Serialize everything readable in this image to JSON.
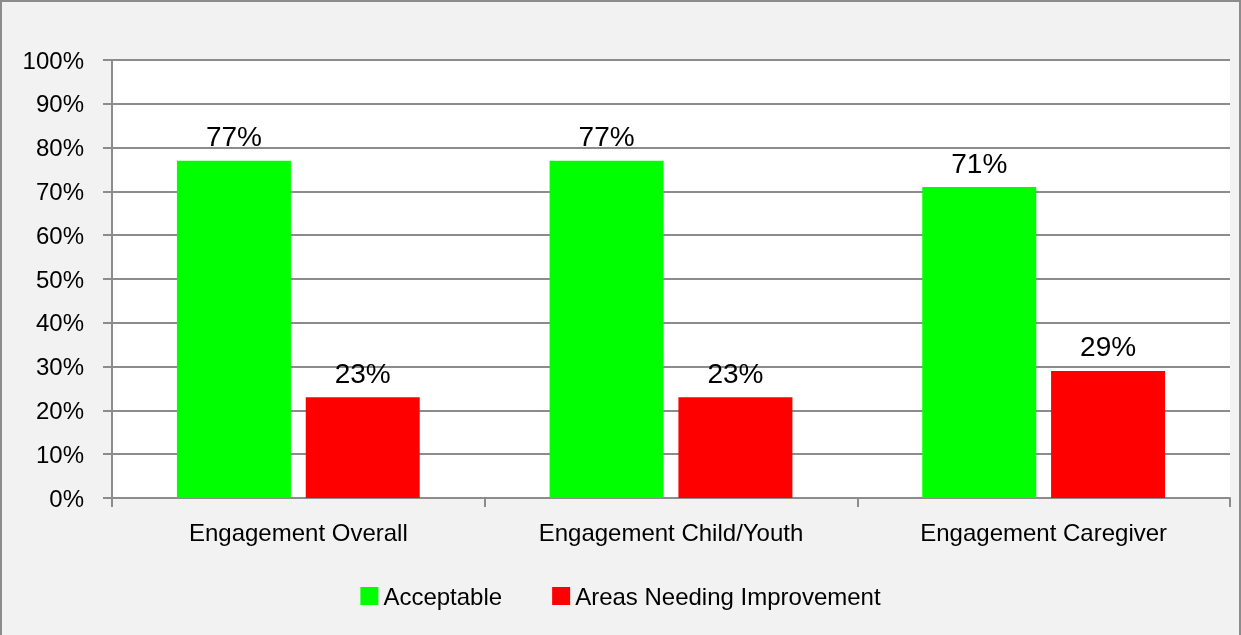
{
  "chart_data": {
    "type": "bar",
    "categories": [
      "Engagement Overall",
      "Engagement Child/Youth",
      "Engagement Caregiver"
    ],
    "series": [
      {
        "name": "Acceptable",
        "color": "#00ff00",
        "values": [
          77,
          77,
          71
        ],
        "value_labels": [
          "77%",
          "77%",
          "71%"
        ]
      },
      {
        "name": "Areas Needing Improvement",
        "color": "#ff0000",
        "values": [
          23,
          23,
          29
        ],
        "value_labels": [
          "23%",
          "23%",
          "29%"
        ]
      }
    ],
    "ylim": [
      0,
      100
    ],
    "yticks": [
      {
        "value": 0,
        "label": "0%"
      },
      {
        "value": 10,
        "label": "10%"
      },
      {
        "value": 20,
        "label": "20%"
      },
      {
        "value": 30,
        "label": "30%"
      },
      {
        "value": 40,
        "label": "40%"
      },
      {
        "value": 50,
        "label": "50%"
      },
      {
        "value": 60,
        "label": "60%"
      },
      {
        "value": 70,
        "label": "70%"
      },
      {
        "value": 80,
        "label": "80%"
      },
      {
        "value": 90,
        "label": "90%"
      },
      {
        "value": 100,
        "label": "100%"
      }
    ],
    "grid": "y",
    "legend": "bottom"
  }
}
